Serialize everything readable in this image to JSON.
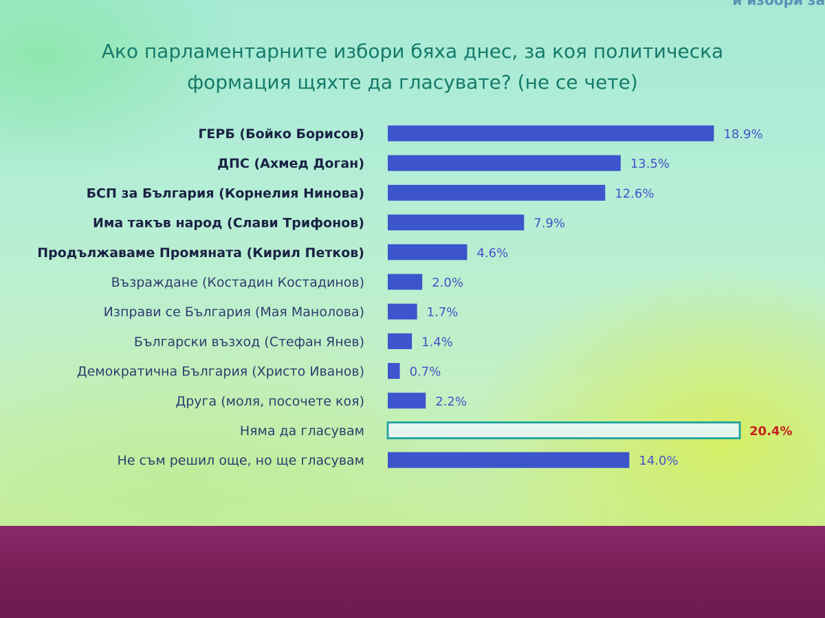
{
  "header": {
    "corner_text": "и избори за",
    "title_line1": "Ако парламентарните избори бяха днес, за коя политическа",
    "title_line2": "формация щяхте да гласувате? (не се чете)"
  },
  "colors": {
    "bar_fill": "#3c55cc",
    "bar_outline_fill": "#e6f6ee",
    "bar_outline_stroke": "#2aa6a0",
    "label_text": "#1e2a55",
    "value_text": "#4552c8",
    "value_highlight": "#c81e1e"
  },
  "chart_data": {
    "type": "bar",
    "orientation": "horizontal",
    "title": "Ако парламентарните избори бяха днес, за коя политическа формация щяхте да гласувате? (не се чете)",
    "categories": [
      "ГЕРБ (Бойко Борисов)",
      "ДПС (Ахмед Доган)",
      "БСП за България (Корнелия Нинова)",
      "Има такъв народ (Слави Трифонов)",
      "Продължаваме Промяната (Кирил Петков)",
      "Възраждане (Костадин Костадинов)",
      "Изправи се България (Мая Манолова)",
      "Български възход (Стефан Янев)",
      "Демократична България (Христо Иванов)",
      "Друга (моля, посочете коя)",
      "Няма да гласувам",
      "Не съм решил още, но ще гласувам"
    ],
    "values": [
      18.9,
      13.5,
      12.6,
      7.9,
      4.6,
      2.0,
      1.7,
      1.4,
      0.7,
      2.2,
      20.4,
      14.0
    ],
    "value_labels": [
      "18.9%",
      "13.5%",
      "12.6%",
      "7.9%",
      "4.6%",
      "2.0%",
      "1.7%",
      "1.4%",
      "0.7%",
      "2.2%",
      "20.4%",
      "14.0%"
    ],
    "bold_categories": [
      0,
      1,
      2,
      3,
      4
    ],
    "outlined_bars": [
      10
    ],
    "highlighted_values": [
      10
    ],
    "unit": "%",
    "grid": false,
    "legend": "none"
  }
}
